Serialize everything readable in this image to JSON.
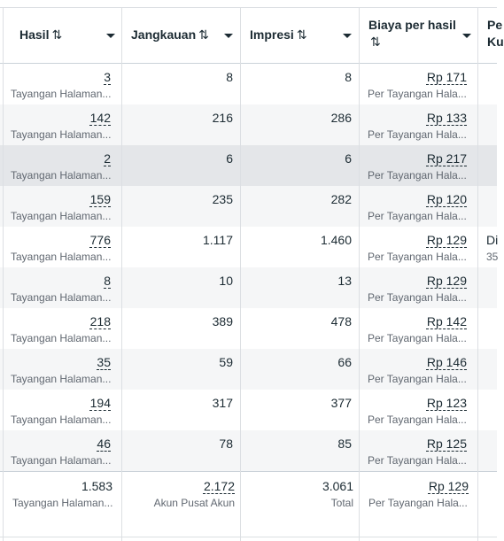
{
  "columns": [
    {
      "label": "Hasil",
      "sort_icon": "⇅"
    },
    {
      "label": "Jangkauan",
      "sort_icon": "⇅"
    },
    {
      "label": "Impresi",
      "sort_icon": "⇅"
    },
    {
      "label": "Biaya per hasil",
      "sort_icon": "⇅"
    },
    {
      "label": "Pe",
      "label2": "Ku"
    }
  ],
  "rows": [
    {
      "hasil": "3",
      "hasil_sub": "Tayangan Halaman...",
      "jangkauan": "8",
      "impresi": "8",
      "biaya": "Rp 171",
      "biaya_sub": "Per Tayangan Hala..."
    },
    {
      "hasil": "142",
      "hasil_sub": "Tayangan Halaman...",
      "jangkauan": "216",
      "impresi": "286",
      "biaya": "Rp 133",
      "biaya_sub": "Per Tayangan Hala..."
    },
    {
      "hasil": "2",
      "hasil_sub": "Tayangan Halaman...",
      "jangkauan": "6",
      "impresi": "6",
      "biaya": "Rp 217",
      "biaya_sub": "Per Tayangan Hala..."
    },
    {
      "hasil": "159",
      "hasil_sub": "Tayangan Halaman...",
      "jangkauan": "235",
      "impresi": "282",
      "biaya": "Rp 120",
      "biaya_sub": "Per Tayangan Hala..."
    },
    {
      "hasil": "776",
      "hasil_sub": "Tayangan Halaman...",
      "jangkauan": "1.117",
      "impresi": "1.460",
      "biaya": "Rp 129",
      "biaya_sub": "Per Tayangan Hala...",
      "extra": "Di",
      "extra_sub": "35"
    },
    {
      "hasil": "8",
      "hasil_sub": "Tayangan Halaman...",
      "jangkauan": "10",
      "impresi": "13",
      "biaya": "Rp 129",
      "biaya_sub": "Per Tayangan Hala..."
    },
    {
      "hasil": "218",
      "hasil_sub": "Tayangan Halaman...",
      "jangkauan": "389",
      "impresi": "478",
      "biaya": "Rp 142",
      "biaya_sub": "Per Tayangan Hala..."
    },
    {
      "hasil": "35",
      "hasil_sub": "Tayangan Halaman...",
      "jangkauan": "59",
      "impresi": "66",
      "biaya": "Rp 146",
      "biaya_sub": "Per Tayangan Hala..."
    },
    {
      "hasil": "194",
      "hasil_sub": "Tayangan Halaman...",
      "jangkauan": "317",
      "impresi": "377",
      "biaya": "Rp 123",
      "biaya_sub": "Per Tayangan Hala..."
    },
    {
      "hasil": "46",
      "hasil_sub": "Tayangan Halaman...",
      "jangkauan": "78",
      "impresi": "85",
      "biaya": "Rp 125",
      "biaya_sub": "Per Tayangan Hala..."
    }
  ],
  "totals": {
    "hasil": "1.583",
    "hasil_sub": "Tayangan Halaman...",
    "jangkauan": "2.172",
    "jangkauan_sub": "Akun Pusat Akun",
    "impresi": "3.061",
    "impresi_sub": "Total",
    "biaya": "Rp 129",
    "biaya_sub": "Per Tayangan Hala..."
  }
}
